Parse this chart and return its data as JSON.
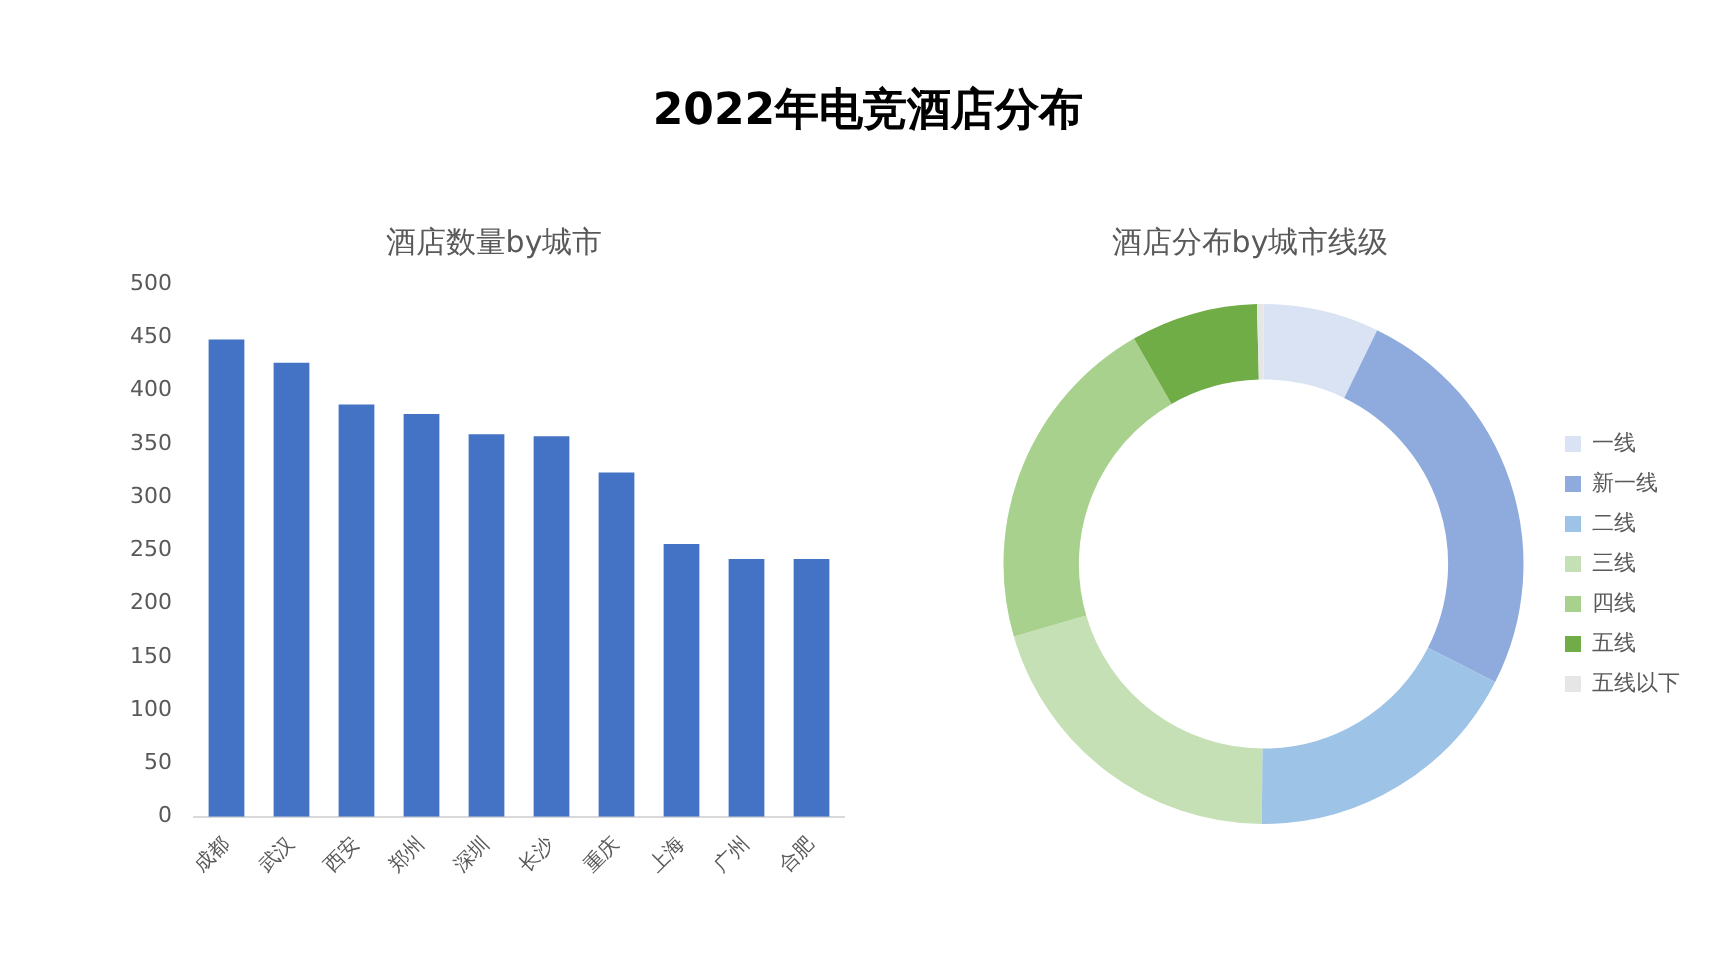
{
  "chart_data": [
    {
      "type": "other",
      "title": "2022年电竞酒店分布"
    },
    {
      "type": "bar",
      "title": "酒店数量by城市",
      "categories": [
        "成都",
        "武汉",
        "西安",
        "郑州",
        "深圳",
        "长沙",
        "重庆",
        "上海",
        "广州",
        "合肥"
      ],
      "values": [
        448,
        426,
        387,
        378,
        359,
        357,
        323,
        256,
        242,
        242
      ],
      "color": "#4472c4",
      "ylim": [
        0,
        500
      ],
      "yticks": [
        0,
        50,
        100,
        150,
        200,
        250,
        300,
        350,
        400,
        450,
        500
      ]
    },
    {
      "type": "donut",
      "title": "酒店分布by城市线级",
      "categories": [
        "一线",
        "新一线",
        "二线",
        "三线",
        "四线",
        "五线",
        "五线以下"
      ],
      "values": [
        7.2,
        25.3,
        17.6,
        20.4,
        21.2,
        7.9,
        0.4
      ],
      "colors": [
        "#dae3f3",
        "#8faadc",
        "#9dc3e6",
        "#c5e0b4",
        "#a9d18e",
        "#70ad47",
        "#e7e6e6"
      ],
      "legend": "right"
    }
  ]
}
